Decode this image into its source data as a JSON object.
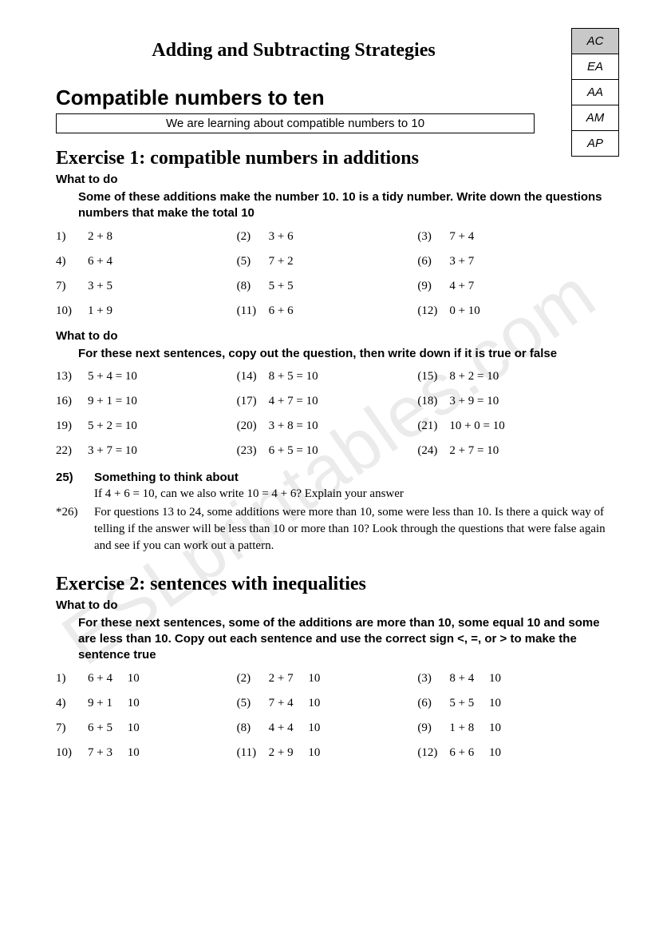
{
  "watermark": "ESLprintables.com",
  "stages": [
    {
      "label": "AC",
      "shaded": true
    },
    {
      "label": "EA",
      "shaded": false
    },
    {
      "label": "AA",
      "shaded": false
    },
    {
      "label": "AM",
      "shaded": false
    },
    {
      "label": "AP",
      "shaded": false
    }
  ],
  "main_title": "Adding and Subtracting Strategies",
  "section_title": "Compatible numbers to ten",
  "learn_box": "We are learning about compatible numbers to 10",
  "ex1": {
    "title": "Exercise 1:  compatible numbers in additions",
    "wtd1": "What to do",
    "instr1": "Some of these additions make the number 10.  10 is a tidy number.  Write down the questions numbers that make the total 10",
    "set1": [
      {
        "n": "1)",
        "t": "2 + 8"
      },
      {
        "n": "(2)",
        "t": "3 + 6"
      },
      {
        "n": "(3)",
        "t": "7 + 4"
      },
      {
        "n": "4)",
        "t": "6 + 4"
      },
      {
        "n": "(5)",
        "t": "7 + 2"
      },
      {
        "n": "(6)",
        "t": "3 + 7"
      },
      {
        "n": "7)",
        "t": "3 + 5"
      },
      {
        "n": "(8)",
        "t": "5 + 5"
      },
      {
        "n": "(9)",
        "t": "4 + 7"
      },
      {
        "n": "10)",
        "t": "1 + 9"
      },
      {
        "n": "(11)",
        "t": "6 + 6"
      },
      {
        "n": "(12)",
        "t": "0 + 10"
      }
    ],
    "wtd2": "What to do",
    "instr2": "For these next sentences, copy out the question, then write down if it is true or false",
    "set2": [
      {
        "n": "13)",
        "t": "5 + 4 = 10"
      },
      {
        "n": "(14)",
        "t": "8 + 5 = 10"
      },
      {
        "n": "(15)",
        "t": "8 + 2 = 10"
      },
      {
        "n": "16)",
        "t": "9 + 1 = 10"
      },
      {
        "n": "(17)",
        "t": "4 + 7 = 10"
      },
      {
        "n": "(18)",
        "t": "3 + 9 = 10"
      },
      {
        "n": "19)",
        "t": "5 + 2 = 10"
      },
      {
        "n": "(20)",
        "t": "3 + 8 = 10"
      },
      {
        "n": "(21)",
        "t": "10 + 0 = 10"
      },
      {
        "n": "22)",
        "t": "3 + 7 = 10"
      },
      {
        "n": "(23)",
        "t": "6 + 5 = 10"
      },
      {
        "n": "(24)",
        "t": "2 + 7 = 10"
      }
    ],
    "think25_label": "25)",
    "think25_title": "Something to think about",
    "think25_body": "If 4 + 6 = 10, can we also write 10 = 4 + 6?  Explain your answer",
    "think26_label": "*26)",
    "think26_body": "For questions 13 to 24, some additions were more than 10, some were less than 10.  Is there a quick way of telling if the answer will be less than 10 or more than 10?  Look through the questions that were false again and see if you can work out a pattern."
  },
  "ex2": {
    "title": "Exercise 2:  sentences with inequalities",
    "wtd": "What to do",
    "instr": "For these next sentences, some of the additions are more than 10, some equal 10 and some are less than 10.  Copy out each sentence and use the correct sign <, =, or > to make the sentence true",
    "set": [
      {
        "n": "1)",
        "t": "6 + 4     10"
      },
      {
        "n": "(2)",
        "t": "2 + 7     10"
      },
      {
        "n": "(3)",
        "t": "8 + 4     10"
      },
      {
        "n": "4)",
        "t": "9 + 1     10"
      },
      {
        "n": "(5)",
        "t": "7 + 4     10"
      },
      {
        "n": "(6)",
        "t": "5 + 5     10"
      },
      {
        "n": "7)",
        "t": "6 + 5     10"
      },
      {
        "n": "(8)",
        "t": "4 + 4     10"
      },
      {
        "n": "(9)",
        "t": "1 + 8     10"
      },
      {
        "n": "10)",
        "t": "7 + 3     10"
      },
      {
        "n": "(11)",
        "t": "2 + 9     10"
      },
      {
        "n": "(12)",
        "t": "6 + 6     10"
      }
    ]
  }
}
